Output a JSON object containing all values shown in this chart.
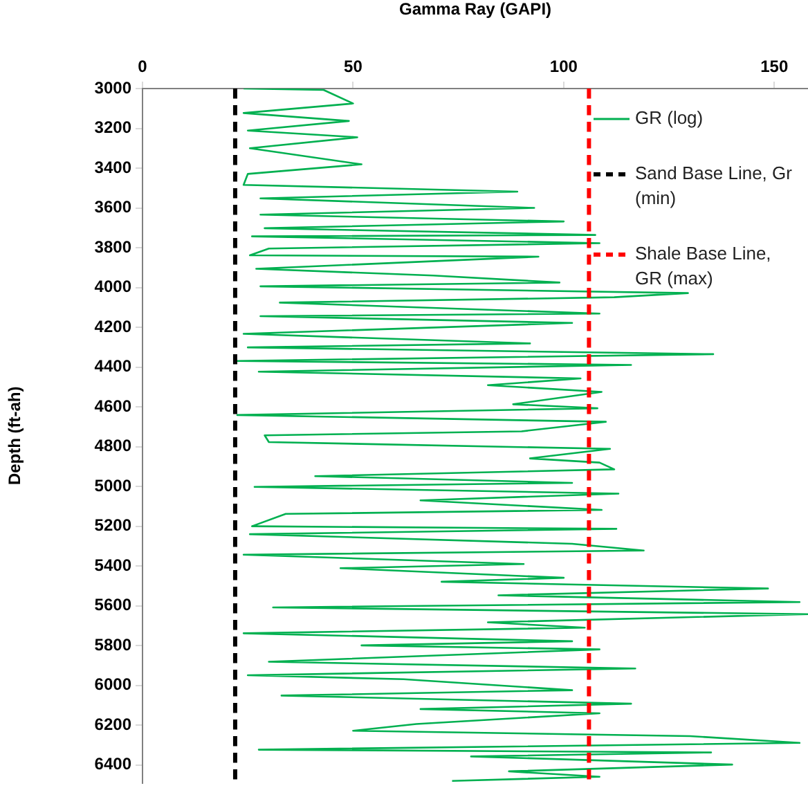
{
  "chart_data": {
    "type": "line",
    "orientation": "horizontal",
    "xlabel": "Gamma Ray (GAPI)",
    "ylabel": "Depth (ft-ah)",
    "xlim": [
      0,
      158
    ],
    "xticks": [
      0,
      50,
      100,
      150
    ],
    "ylim": [
      6490,
      3000
    ],
    "yticks": [
      3000,
      3200,
      3400,
      3600,
      3800,
      4000,
      4200,
      4400,
      4600,
      4800,
      5000,
      5200,
      5400,
      5600,
      5800,
      6000,
      6200,
      6400
    ],
    "grid": false,
    "legend": "top right",
    "marker": "none",
    "series": [
      {
        "name": "GR (log)",
        "color": "#00b050",
        "line_style": "solid",
        "x": [
          3000,
          3007,
          3075,
          3123,
          3163,
          3211,
          3245,
          3300,
          3381,
          3429,
          3484,
          3518,
          3552,
          3600,
          3634,
          3668,
          3702,
          3736,
          3743,
          3777,
          3804,
          3838,
          3845,
          3906,
          3940,
          3975,
          3994,
          4028,
          4049,
          4076,
          4131,
          4144,
          4178,
          4233,
          4281,
          4301,
          4335,
          4369,
          4389,
          4423,
          4457,
          4491,
          4525,
          4587,
          4607,
          4641,
          4675,
          4723,
          4743,
          4777,
          4811,
          4859,
          4880,
          4914,
          4948,
          4982,
          5002,
          5036,
          5070,
          5118,
          5138,
          5200,
          5213,
          5240,
          5288,
          5322,
          5343,
          5390,
          5411,
          5459,
          5479,
          5513,
          5547,
          5581,
          5608,
          5642,
          5683,
          5710,
          5738,
          5778,
          5799,
          5819,
          5881,
          5915,
          5949,
          5969,
          6024,
          6051,
          6092,
          6119,
          6140,
          6194,
          6228,
          6255,
          6289,
          6323,
          6337,
          6357,
          6398,
          6432,
          6459,
          6480
        ],
        "values": [
          24,
          43,
          50,
          24,
          49,
          25,
          51,
          25.5,
          52,
          25,
          24,
          89,
          28,
          93,
          28,
          100,
          29,
          107.5,
          26,
          108.5,
          30,
          25.5,
          94,
          27,
          69,
          99,
          28,
          129.5,
          112,
          32.6,
          108.5,
          28,
          102,
          24,
          92,
          25,
          135.5,
          22.5,
          116,
          27.6,
          104,
          82,
          109,
          88,
          108,
          22.5,
          110,
          90,
          29,
          30,
          111,
          92,
          108.5,
          112,
          41,
          102,
          26.6,
          113,
          66,
          109,
          34,
          26,
          112.5,
          25.5,
          102,
          119,
          24,
          90.5,
          47,
          100,
          71,
          148.5,
          84.5,
          156,
          31,
          158,
          82,
          105,
          24,
          102,
          52,
          108.5,
          30,
          117,
          25,
          62,
          102,
          33,
          116,
          66,
          108.5,
          65,
          50,
          130,
          156,
          27.6,
          135,
          78,
          140,
          87,
          108.5,
          73.5
        ]
      }
    ],
    "ref_lines": [
      {
        "axis": "x",
        "value": 22,
        "label": "Sand Base Line, Gr (min)",
        "color": "#000000",
        "line_style": "dashed"
      },
      {
        "axis": "x",
        "value": 106,
        "label": "Shale Base Line, GR (max)",
        "color": "#ff0000",
        "line_style": "dashed"
      }
    ]
  }
}
